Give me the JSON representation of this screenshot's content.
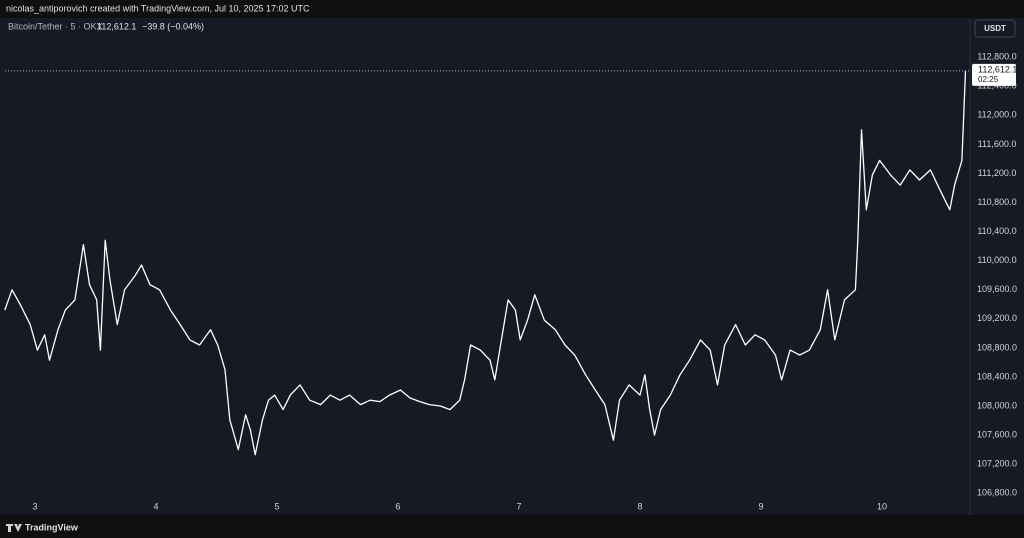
{
  "header_text": "nicolas_antiporovich created with TradingView.com, Jul 10, 2025 17:02 UTC",
  "footer_logo": "TradingView",
  "chart_data": {
    "type": "line",
    "symbol_info": "Bitcoin/Tether · 5 · OKX",
    "legend_price": "112,612.1",
    "legend_change": "−39.8 (−0.04%)",
    "currency": "USDT",
    "last_price": {
      "value": 112612.1,
      "label": "112,612.1"
    },
    "countdown": "02:25",
    "color": "#ffffff",
    "grid": false,
    "xlim": [
      2.752,
      10.727
    ],
    "xticks": [
      3,
      4,
      5,
      6,
      7,
      8,
      9,
      10
    ],
    "ylim": [
      106500,
      113340
    ],
    "yticks": [
      {
        "value": 106800,
        "label": "106,800.0"
      },
      {
        "value": 107200,
        "label": "107,200.0"
      },
      {
        "value": 107600,
        "label": "107,600.0"
      },
      {
        "value": 108000,
        "label": "108,000.0"
      },
      {
        "value": 108400,
        "label": "108,400.0"
      },
      {
        "value": 108800,
        "label": "108,800.0"
      },
      {
        "value": 109200,
        "label": "109,200.0"
      },
      {
        "value": 109600,
        "label": "109,600.0"
      },
      {
        "value": 110000,
        "label": "110,000.0"
      },
      {
        "value": 110400,
        "label": "110,400.0"
      },
      {
        "value": 110800,
        "label": "110,800.0"
      },
      {
        "value": 111200,
        "label": "111,200.0"
      },
      {
        "value": 111600,
        "label": "111,600.0"
      },
      {
        "value": 112000,
        "label": "112,000.0"
      },
      {
        "value": 112400,
        "label": "112,400.0"
      },
      {
        "value": 112800,
        "label": "112,800.0"
      }
    ],
    "x": [
      2.75,
      2.81,
      2.88,
      2.96,
      3.02,
      3.08,
      3.12,
      3.19,
      3.25,
      3.33,
      3.4,
      3.45,
      3.51,
      3.54,
      3.58,
      3.62,
      3.68,
      3.74,
      3.83,
      3.88,
      3.95,
      4.03,
      4.12,
      4.2,
      4.28,
      4.36,
      4.45,
      4.51,
      4.57,
      4.61,
      4.68,
      4.74,
      4.78,
      4.82,
      4.88,
      4.93,
      4.98,
      5.05,
      5.11,
      5.19,
      5.27,
      5.36,
      5.44,
      5.52,
      5.6,
      5.69,
      5.77,
      5.85,
      5.93,
      6.02,
      6.1,
      6.18,
      6.26,
      6.35,
      6.43,
      6.51,
      6.55,
      6.6,
      6.68,
      6.76,
      6.8,
      6.84,
      6.91,
      6.97,
      7.01,
      7.07,
      7.13,
      7.21,
      7.3,
      7.38,
      7.46,
      7.55,
      7.63,
      7.71,
      7.78,
      7.83,
      7.91,
      8.0,
      8.04,
      8.08,
      8.12,
      8.17,
      8.25,
      8.33,
      8.41,
      8.5,
      8.58,
      8.64,
      8.7,
      8.79,
      8.87,
      8.95,
      9.03,
      9.12,
      9.17,
      9.24,
      9.32,
      9.4,
      9.49,
      9.55,
      9.61,
      9.69,
      9.78,
      9.8,
      9.83,
      9.87,
      9.92,
      9.98,
      10.07,
      10.15,
      10.23,
      10.31,
      10.4,
      10.48,
      10.56,
      10.6,
      10.66,
      10.69
    ],
    "values": [
      109320,
      109600,
      109390,
      109120,
      108770,
      108980,
      108630,
      109050,
      109320,
      109460,
      110220,
      109670,
      109460,
      108770,
      110280,
      109730,
      109120,
      109600,
      109800,
      109940,
      109670,
      109600,
      109320,
      109120,
      108910,
      108840,
      109050,
      108840,
      108500,
      107810,
      107400,
      107880,
      107670,
      107330,
      107810,
      108080,
      108150,
      107950,
      108150,
      108290,
      108080,
      108020,
      108150,
      108080,
      108150,
      108020,
      108080,
      108060,
      108150,
      108220,
      108110,
      108060,
      108020,
      108000,
      107950,
      108080,
      108360,
      108840,
      108770,
      108630,
      108360,
      108770,
      109460,
      109320,
      108910,
      109180,
      109530,
      109180,
      109050,
      108840,
      108700,
      108430,
      108220,
      108020,
      107530,
      108080,
      108290,
      108150,
      108430,
      107950,
      107600,
      107950,
      108150,
      108430,
      108630,
      108910,
      108770,
      108290,
      108840,
      109120,
      108840,
      108980,
      108910,
      108700,
      108360,
      108770,
      108700,
      108770,
      109050,
      109600,
      108910,
      109460,
      109600,
      110280,
      111800,
      110700,
      111180,
      111380,
      111180,
      111040,
      111250,
      111110,
      111250,
      110970,
      110700,
      111040,
      111380,
      112612.1
    ]
  }
}
